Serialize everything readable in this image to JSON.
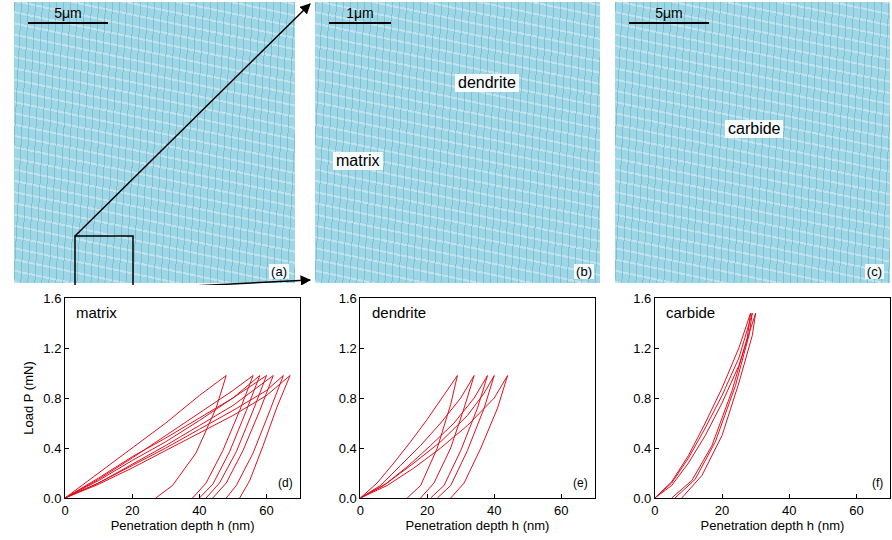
{
  "images": [
    {
      "label": "(a)",
      "scale_bar": "5μm"
    },
    {
      "label": "(b)",
      "scale_bar": "1μm",
      "annotations": [
        "matrix",
        "dendrite"
      ]
    },
    {
      "label": "(c)",
      "scale_bar": "5μm",
      "annotations": [
        "carbide"
      ]
    }
  ],
  "chart_data": [
    {
      "type": "line",
      "label": "(d)",
      "annotation": "matrix",
      "color": "#e0101e",
      "x_label": "Penetration depth h (nm)",
      "y_label": "Load P (mN)",
      "xlim": [
        0,
        70
      ],
      "ylim": [
        0,
        1.6
      ],
      "xticks": [
        0,
        20,
        40,
        60
      ],
      "yticks": [
        {
          "value": 0,
          "label": "0.0"
        },
        {
          "value": 0.4,
          "label": "0.4"
        },
        {
          "value": 0.8,
          "label": "0.8"
        },
        {
          "value": 1.2,
          "label": "1.2"
        },
        {
          "value": 1.6,
          "label": "1.6"
        }
      ],
      "series": [
        {
          "x": [
            0,
            10,
            20,
            30,
            40,
            48,
            45,
            39,
            32,
            27
          ],
          "values": [
            0,
            0.2,
            0.4,
            0.6,
            0.82,
            0.98,
            0.72,
            0.36,
            0.1,
            0
          ]
        },
        {
          "x": [
            0,
            10,
            20,
            30,
            40,
            50,
            56,
            52,
            47,
            42,
            38
          ],
          "values": [
            0,
            0.15,
            0.32,
            0.5,
            0.68,
            0.86,
            0.98,
            0.7,
            0.38,
            0.12,
            0
          ]
        },
        {
          "x": [
            0,
            10,
            20,
            30,
            40,
            50,
            58,
            54,
            49,
            44,
            40
          ],
          "values": [
            0,
            0.16,
            0.33,
            0.48,
            0.64,
            0.8,
            0.98,
            0.7,
            0.37,
            0.11,
            0
          ]
        },
        {
          "x": [
            0,
            10,
            20,
            30,
            40,
            50,
            60,
            56,
            51,
            46,
            42
          ],
          "values": [
            0,
            0.14,
            0.3,
            0.45,
            0.62,
            0.8,
            0.98,
            0.7,
            0.37,
            0.12,
            0
          ]
        },
        {
          "x": [
            0,
            10,
            20,
            30,
            40,
            50,
            62,
            58,
            53,
            48,
            44
          ],
          "values": [
            0,
            0.12,
            0.27,
            0.42,
            0.58,
            0.74,
            0.98,
            0.7,
            0.38,
            0.12,
            0
          ]
        },
        {
          "x": [
            0,
            10,
            20,
            30,
            40,
            50,
            60,
            65,
            61,
            56,
            51,
            48
          ],
          "values": [
            0,
            0.12,
            0.26,
            0.4,
            0.55,
            0.7,
            0.86,
            0.98,
            0.7,
            0.36,
            0.1,
            0
          ]
        },
        {
          "x": [
            0,
            10,
            20,
            30,
            40,
            50,
            60,
            67,
            63,
            59,
            55,
            52
          ],
          "values": [
            0,
            0.11,
            0.24,
            0.38,
            0.52,
            0.66,
            0.82,
            0.98,
            0.72,
            0.42,
            0.14,
            0
          ]
        }
      ]
    },
    {
      "type": "line",
      "label": "(e)",
      "annotation": "dendrite",
      "color": "#e0101e",
      "x_label": "Penetration depth h (nm)",
      "xlim": [
        0,
        70
      ],
      "ylim": [
        0,
        1.6
      ],
      "xticks": [
        0,
        20,
        40,
        60
      ],
      "yticks": [
        {
          "value": 0,
          "label": "0.0"
        },
        {
          "value": 0.4,
          "label": "0.4"
        },
        {
          "value": 0.8,
          "label": "0.8"
        },
        {
          "value": 1.2,
          "label": "1.2"
        },
        {
          "value": 1.6,
          "label": "1.6"
        }
      ],
      "series": [
        {
          "x": [
            0,
            5,
            10,
            15,
            20,
            25,
            29,
            27,
            23,
            18,
            14
          ],
          "values": [
            0,
            0.12,
            0.28,
            0.45,
            0.63,
            0.82,
            0.98,
            0.75,
            0.4,
            0.1,
            0
          ]
        },
        {
          "x": [
            0,
            6,
            12,
            18,
            24,
            30,
            34,
            31,
            27,
            22,
            18
          ],
          "values": [
            0,
            0.1,
            0.26,
            0.42,
            0.6,
            0.8,
            0.98,
            0.72,
            0.4,
            0.12,
            0
          ]
        },
        {
          "x": [
            0,
            7,
            14,
            21,
            28,
            34,
            38,
            35,
            30,
            25,
            21
          ],
          "values": [
            0,
            0.1,
            0.25,
            0.42,
            0.6,
            0.8,
            0.98,
            0.72,
            0.38,
            0.1,
            0
          ]
        },
        {
          "x": [
            0,
            8,
            16,
            24,
            32,
            37,
            40,
            37,
            32,
            27,
            23
          ],
          "values": [
            0,
            0.12,
            0.28,
            0.45,
            0.66,
            0.84,
            0.98,
            0.72,
            0.38,
            0.1,
            0
          ]
        },
        {
          "x": [
            0,
            8,
            16,
            24,
            32,
            40,
            44,
            41,
            36,
            31,
            27
          ],
          "values": [
            0,
            0.1,
            0.24,
            0.4,
            0.58,
            0.8,
            0.98,
            0.72,
            0.4,
            0.12,
            0
          ]
        }
      ]
    },
    {
      "type": "line",
      "label": "(f)",
      "annotation": "carbide",
      "color": "#e0101e",
      "x_label": "Penetration depth h (nm)",
      "xlim": [
        0,
        70
      ],
      "ylim": [
        0,
        1.6
      ],
      "xticks": [
        0,
        20,
        40,
        60
      ],
      "yticks": [
        {
          "value": 0,
          "label": "0.0"
        },
        {
          "value": 0.4,
          "label": "0.4"
        },
        {
          "value": 0.8,
          "label": "0.8"
        },
        {
          "value": 1.2,
          "label": "1.2"
        },
        {
          "value": 1.6,
          "label": "1.6"
        }
      ],
      "series": [
        {
          "x": [
            0,
            5,
            10,
            15,
            20,
            25,
            29,
            28,
            24,
            18,
            12,
            6
          ],
          "values": [
            0,
            0.12,
            0.32,
            0.56,
            0.82,
            1.12,
            1.48,
            1.3,
            0.9,
            0.45,
            0.15,
            0
          ]
        },
        {
          "x": [
            0,
            5,
            10,
            15,
            20,
            25,
            30,
            29,
            25,
            20,
            14,
            8
          ],
          "values": [
            0,
            0.1,
            0.28,
            0.5,
            0.76,
            1.06,
            1.48,
            1.3,
            0.92,
            0.5,
            0.18,
            0
          ]
        },
        {
          "x": [
            0,
            5,
            10,
            15,
            20,
            25,
            28.5,
            27.5,
            23,
            17,
            11,
            5
          ],
          "values": [
            0,
            0.13,
            0.34,
            0.6,
            0.88,
            1.2,
            1.48,
            1.28,
            0.86,
            0.42,
            0.14,
            0
          ]
        }
      ]
    }
  ]
}
